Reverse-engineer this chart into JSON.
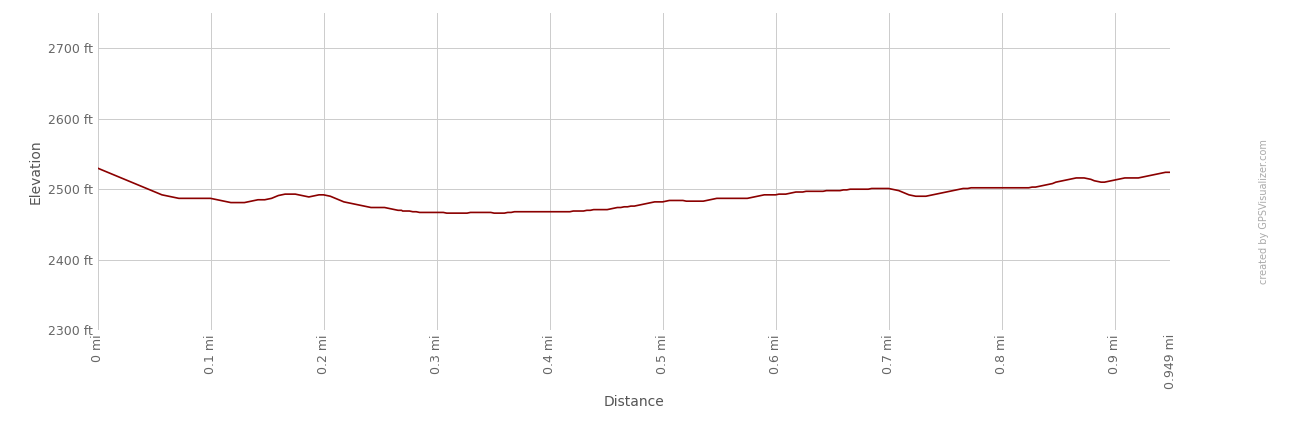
{
  "xlabel": "Distance",
  "ylabel": "Elevation",
  "xlim": [
    0,
    0.949
  ],
  "ylim": [
    2300,
    2750
  ],
  "yticks": [
    2300,
    2400,
    2500,
    2600,
    2700
  ],
  "ytick_labels": [
    "2300 ft",
    "2400 ft",
    "2500 ft",
    "2600 ft",
    "2700 ft"
  ],
  "xticks": [
    0,
    0.1,
    0.2,
    0.3,
    0.4,
    0.5,
    0.6,
    0.7,
    0.8,
    0.9,
    0.949
  ],
  "xtick_labels": [
    "0 mi",
    "0.1 mi",
    "0.2 mi",
    "0.3 mi",
    "0.4 mi",
    "0.5 mi",
    "0.6 mi",
    "0.7 mi",
    "0.8 mi",
    "0.9 mi",
    "0.949 mi"
  ],
  "line_color": "#8B0000",
  "background_color": "#ffffff",
  "grid_color": "#cccccc",
  "watermark": "created by GPSVisualizer.com",
  "elevation_data": [
    [
      0.0,
      2530
    ],
    [
      0.003,
      2528
    ],
    [
      0.006,
      2526
    ],
    [
      0.009,
      2524
    ],
    [
      0.012,
      2522
    ],
    [
      0.015,
      2520
    ],
    [
      0.018,
      2518
    ],
    [
      0.021,
      2516
    ],
    [
      0.024,
      2514
    ],
    [
      0.027,
      2512
    ],
    [
      0.03,
      2510
    ],
    [
      0.033,
      2508
    ],
    [
      0.036,
      2506
    ],
    [
      0.039,
      2504
    ],
    [
      0.042,
      2502
    ],
    [
      0.045,
      2500
    ],
    [
      0.048,
      2498
    ],
    [
      0.051,
      2496
    ],
    [
      0.054,
      2494
    ],
    [
      0.057,
      2492
    ],
    [
      0.06,
      2491
    ],
    [
      0.063,
      2490
    ],
    [
      0.066,
      2489
    ],
    [
      0.069,
      2488
    ],
    [
      0.072,
      2487
    ],
    [
      0.075,
      2487
    ],
    [
      0.078,
      2487
    ],
    [
      0.081,
      2487
    ],
    [
      0.084,
      2487
    ],
    [
      0.087,
      2487
    ],
    [
      0.09,
      2487
    ],
    [
      0.093,
      2487
    ],
    [
      0.096,
      2487
    ],
    [
      0.099,
      2487
    ],
    [
      0.1,
      2487
    ],
    [
      0.103,
      2486
    ],
    [
      0.106,
      2485
    ],
    [
      0.109,
      2484
    ],
    [
      0.112,
      2483
    ],
    [
      0.115,
      2482
    ],
    [
      0.118,
      2481
    ],
    [
      0.121,
      2481
    ],
    [
      0.124,
      2481
    ],
    [
      0.127,
      2481
    ],
    [
      0.13,
      2481
    ],
    [
      0.133,
      2482
    ],
    [
      0.136,
      2483
    ],
    [
      0.139,
      2484
    ],
    [
      0.142,
      2485
    ],
    [
      0.145,
      2485
    ],
    [
      0.148,
      2485
    ],
    [
      0.151,
      2486
    ],
    [
      0.154,
      2487
    ],
    [
      0.157,
      2489
    ],
    [
      0.16,
      2491
    ],
    [
      0.163,
      2492
    ],
    [
      0.166,
      2493
    ],
    [
      0.169,
      2493
    ],
    [
      0.172,
      2493
    ],
    [
      0.175,
      2493
    ],
    [
      0.178,
      2492
    ],
    [
      0.181,
      2491
    ],
    [
      0.184,
      2490
    ],
    [
      0.187,
      2489
    ],
    [
      0.19,
      2490
    ],
    [
      0.193,
      2491
    ],
    [
      0.196,
      2492
    ],
    [
      0.199,
      2492
    ],
    [
      0.2,
      2492
    ],
    [
      0.203,
      2491
    ],
    [
      0.206,
      2490
    ],
    [
      0.209,
      2488
    ],
    [
      0.212,
      2486
    ],
    [
      0.215,
      2484
    ],
    [
      0.218,
      2482
    ],
    [
      0.221,
      2481
    ],
    [
      0.224,
      2480
    ],
    [
      0.227,
      2479
    ],
    [
      0.23,
      2478
    ],
    [
      0.233,
      2477
    ],
    [
      0.236,
      2476
    ],
    [
      0.239,
      2475
    ],
    [
      0.242,
      2474
    ],
    [
      0.245,
      2474
    ],
    [
      0.248,
      2474
    ],
    [
      0.251,
      2474
    ],
    [
      0.254,
      2474
    ],
    [
      0.257,
      2473
    ],
    [
      0.26,
      2472
    ],
    [
      0.263,
      2471
    ],
    [
      0.266,
      2470
    ],
    [
      0.269,
      2470
    ],
    [
      0.27,
      2469
    ],
    [
      0.273,
      2469
    ],
    [
      0.276,
      2469
    ],
    [
      0.279,
      2468
    ],
    [
      0.282,
      2468
    ],
    [
      0.285,
      2467
    ],
    [
      0.288,
      2467
    ],
    [
      0.291,
      2467
    ],
    [
      0.294,
      2467
    ],
    [
      0.297,
      2467
    ],
    [
      0.3,
      2467
    ],
    [
      0.303,
      2467
    ],
    [
      0.306,
      2467
    ],
    [
      0.309,
      2466
    ],
    [
      0.312,
      2466
    ],
    [
      0.315,
      2466
    ],
    [
      0.318,
      2466
    ],
    [
      0.321,
      2466
    ],
    [
      0.324,
      2466
    ],
    [
      0.327,
      2466
    ],
    [
      0.33,
      2467
    ],
    [
      0.333,
      2467
    ],
    [
      0.336,
      2467
    ],
    [
      0.339,
      2467
    ],
    [
      0.342,
      2467
    ],
    [
      0.345,
      2467
    ],
    [
      0.348,
      2467
    ],
    [
      0.351,
      2466
    ],
    [
      0.354,
      2466
    ],
    [
      0.357,
      2466
    ],
    [
      0.36,
      2466
    ],
    [
      0.363,
      2467
    ],
    [
      0.366,
      2467
    ],
    [
      0.369,
      2468
    ],
    [
      0.372,
      2468
    ],
    [
      0.375,
      2468
    ],
    [
      0.378,
      2468
    ],
    [
      0.381,
      2468
    ],
    [
      0.384,
      2468
    ],
    [
      0.387,
      2468
    ],
    [
      0.39,
      2468
    ],
    [
      0.393,
      2468
    ],
    [
      0.396,
      2468
    ],
    [
      0.399,
      2468
    ],
    [
      0.4,
      2468
    ],
    [
      0.403,
      2468
    ],
    [
      0.406,
      2468
    ],
    [
      0.409,
      2468
    ],
    [
      0.412,
      2468
    ],
    [
      0.415,
      2468
    ],
    [
      0.418,
      2468
    ],
    [
      0.421,
      2469
    ],
    [
      0.424,
      2469
    ],
    [
      0.427,
      2469
    ],
    [
      0.43,
      2469
    ],
    [
      0.433,
      2470
    ],
    [
      0.436,
      2470
    ],
    [
      0.439,
      2471
    ],
    [
      0.442,
      2471
    ],
    [
      0.445,
      2471
    ],
    [
      0.448,
      2471
    ],
    [
      0.451,
      2471
    ],
    [
      0.454,
      2472
    ],
    [
      0.457,
      2473
    ],
    [
      0.46,
      2474
    ],
    [
      0.463,
      2474
    ],
    [
      0.466,
      2475
    ],
    [
      0.469,
      2475
    ],
    [
      0.472,
      2476
    ],
    [
      0.475,
      2476
    ],
    [
      0.478,
      2477
    ],
    [
      0.481,
      2478
    ],
    [
      0.484,
      2479
    ],
    [
      0.487,
      2480
    ],
    [
      0.49,
      2481
    ],
    [
      0.493,
      2482
    ],
    [
      0.496,
      2482
    ],
    [
      0.499,
      2482
    ],
    [
      0.5,
      2482
    ],
    [
      0.503,
      2483
    ],
    [
      0.506,
      2484
    ],
    [
      0.509,
      2484
    ],
    [
      0.512,
      2484
    ],
    [
      0.515,
      2484
    ],
    [
      0.518,
      2484
    ],
    [
      0.521,
      2483
    ],
    [
      0.524,
      2483
    ],
    [
      0.527,
      2483
    ],
    [
      0.53,
      2483
    ],
    [
      0.533,
      2483
    ],
    [
      0.536,
      2483
    ],
    [
      0.539,
      2484
    ],
    [
      0.542,
      2485
    ],
    [
      0.545,
      2486
    ],
    [
      0.548,
      2487
    ],
    [
      0.551,
      2487
    ],
    [
      0.554,
      2487
    ],
    [
      0.557,
      2487
    ],
    [
      0.56,
      2487
    ],
    [
      0.563,
      2487
    ],
    [
      0.566,
      2487
    ],
    [
      0.569,
      2487
    ],
    [
      0.572,
      2487
    ],
    [
      0.575,
      2487
    ],
    [
      0.578,
      2488
    ],
    [
      0.581,
      2489
    ],
    [
      0.584,
      2490
    ],
    [
      0.587,
      2491
    ],
    [
      0.59,
      2492
    ],
    [
      0.593,
      2492
    ],
    [
      0.596,
      2492
    ],
    [
      0.599,
      2492
    ],
    [
      0.6,
      2492
    ],
    [
      0.603,
      2493
    ],
    [
      0.606,
      2493
    ],
    [
      0.609,
      2493
    ],
    [
      0.612,
      2494
    ],
    [
      0.615,
      2495
    ],
    [
      0.618,
      2496
    ],
    [
      0.621,
      2496
    ],
    [
      0.624,
      2496
    ],
    [
      0.627,
      2497
    ],
    [
      0.63,
      2497
    ],
    [
      0.633,
      2497
    ],
    [
      0.636,
      2497
    ],
    [
      0.639,
      2497
    ],
    [
      0.642,
      2497
    ],
    [
      0.645,
      2498
    ],
    [
      0.648,
      2498
    ],
    [
      0.651,
      2498
    ],
    [
      0.654,
      2498
    ],
    [
      0.657,
      2498
    ],
    [
      0.66,
      2499
    ],
    [
      0.663,
      2499
    ],
    [
      0.666,
      2500
    ],
    [
      0.669,
      2500
    ],
    [
      0.67,
      2500
    ],
    [
      0.673,
      2500
    ],
    [
      0.676,
      2500
    ],
    [
      0.679,
      2500
    ],
    [
      0.682,
      2500
    ],
    [
      0.685,
      2501
    ],
    [
      0.688,
      2501
    ],
    [
      0.691,
      2501
    ],
    [
      0.694,
      2501
    ],
    [
      0.697,
      2501
    ],
    [
      0.7,
      2501
    ],
    [
      0.703,
      2500
    ],
    [
      0.706,
      2499
    ],
    [
      0.709,
      2498
    ],
    [
      0.712,
      2496
    ],
    [
      0.715,
      2494
    ],
    [
      0.718,
      2492
    ],
    [
      0.721,
      2491
    ],
    [
      0.724,
      2490
    ],
    [
      0.727,
      2490
    ],
    [
      0.73,
      2490
    ],
    [
      0.733,
      2490
    ],
    [
      0.736,
      2491
    ],
    [
      0.739,
      2492
    ],
    [
      0.742,
      2493
    ],
    [
      0.745,
      2494
    ],
    [
      0.748,
      2495
    ],
    [
      0.751,
      2496
    ],
    [
      0.754,
      2497
    ],
    [
      0.757,
      2498
    ],
    [
      0.76,
      2499
    ],
    [
      0.763,
      2500
    ],
    [
      0.766,
      2501
    ],
    [
      0.769,
      2501
    ],
    [
      0.77,
      2501
    ],
    [
      0.773,
      2502
    ],
    [
      0.776,
      2502
    ],
    [
      0.779,
      2502
    ],
    [
      0.782,
      2502
    ],
    [
      0.785,
      2502
    ],
    [
      0.788,
      2502
    ],
    [
      0.791,
      2502
    ],
    [
      0.794,
      2502
    ],
    [
      0.797,
      2502
    ],
    [
      0.8,
      2502
    ],
    [
      0.803,
      2502
    ],
    [
      0.806,
      2502
    ],
    [
      0.809,
      2502
    ],
    [
      0.812,
      2502
    ],
    [
      0.815,
      2502
    ],
    [
      0.818,
      2502
    ],
    [
      0.821,
      2502
    ],
    [
      0.824,
      2502
    ],
    [
      0.827,
      2503
    ],
    [
      0.83,
      2503
    ],
    [
      0.833,
      2504
    ],
    [
      0.836,
      2505
    ],
    [
      0.839,
      2506
    ],
    [
      0.842,
      2507
    ],
    [
      0.845,
      2508
    ],
    [
      0.848,
      2510
    ],
    [
      0.851,
      2511
    ],
    [
      0.854,
      2512
    ],
    [
      0.857,
      2513
    ],
    [
      0.86,
      2514
    ],
    [
      0.863,
      2515
    ],
    [
      0.866,
      2516
    ],
    [
      0.869,
      2516
    ],
    [
      0.87,
      2516
    ],
    [
      0.873,
      2516
    ],
    [
      0.876,
      2515
    ],
    [
      0.879,
      2514
    ],
    [
      0.882,
      2512
    ],
    [
      0.885,
      2511
    ],
    [
      0.888,
      2510
    ],
    [
      0.891,
      2510
    ],
    [
      0.894,
      2511
    ],
    [
      0.897,
      2512
    ],
    [
      0.9,
      2513
    ],
    [
      0.903,
      2514
    ],
    [
      0.906,
      2515
    ],
    [
      0.909,
      2516
    ],
    [
      0.912,
      2516
    ],
    [
      0.915,
      2516
    ],
    [
      0.918,
      2516
    ],
    [
      0.921,
      2516
    ],
    [
      0.924,
      2517
    ],
    [
      0.927,
      2518
    ],
    [
      0.93,
      2519
    ],
    [
      0.933,
      2520
    ],
    [
      0.936,
      2521
    ],
    [
      0.939,
      2522
    ],
    [
      0.942,
      2523
    ],
    [
      0.945,
      2524
    ],
    [
      0.949,
      2524
    ]
  ]
}
